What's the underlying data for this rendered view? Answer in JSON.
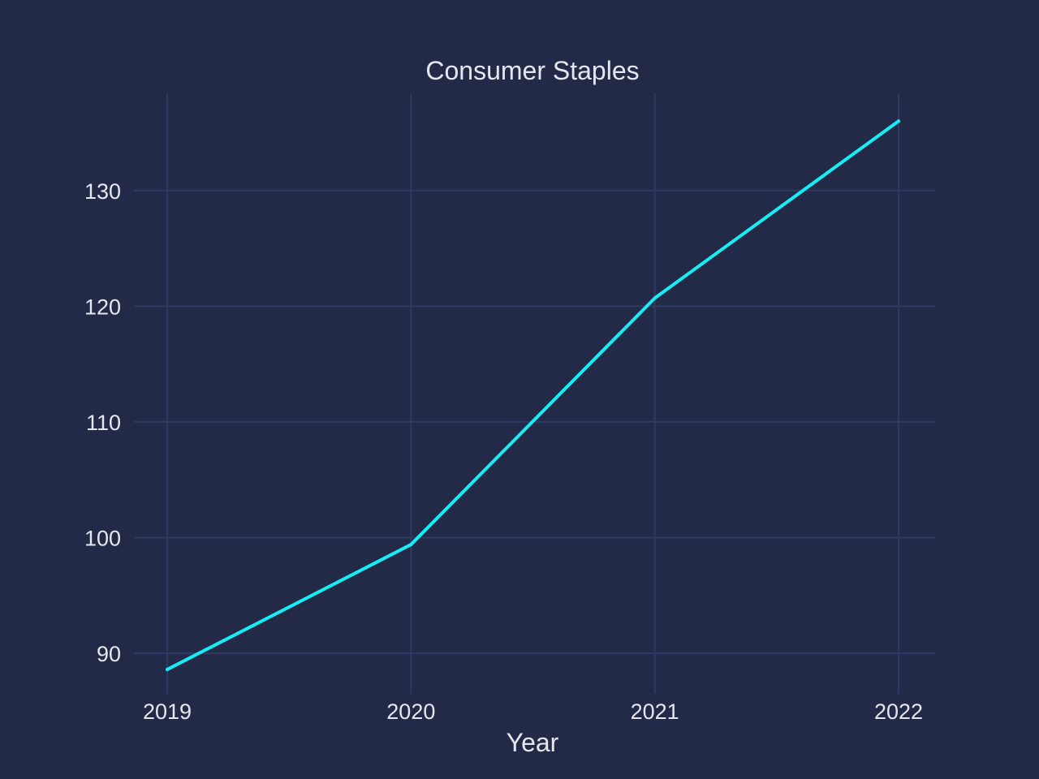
{
  "colors": {
    "background": "#222a48",
    "grid": "#2e3a64",
    "line": "#16eef5",
    "text": "#e6e6ee"
  },
  "chart_data": {
    "type": "line",
    "title": "Consumer Staples",
    "xlabel": "Year",
    "ylabel": "",
    "x": [
      "2019",
      "2020",
      "2021",
      "2022"
    ],
    "series": [
      {
        "values": [
          88.6,
          99.4,
          120.7,
          136.0
        ]
      }
    ],
    "ylim": [
      86.5,
      138.4
    ],
    "yticks": [
      90,
      100,
      110,
      120,
      130
    ],
    "grid": true,
    "legend": "none"
  }
}
